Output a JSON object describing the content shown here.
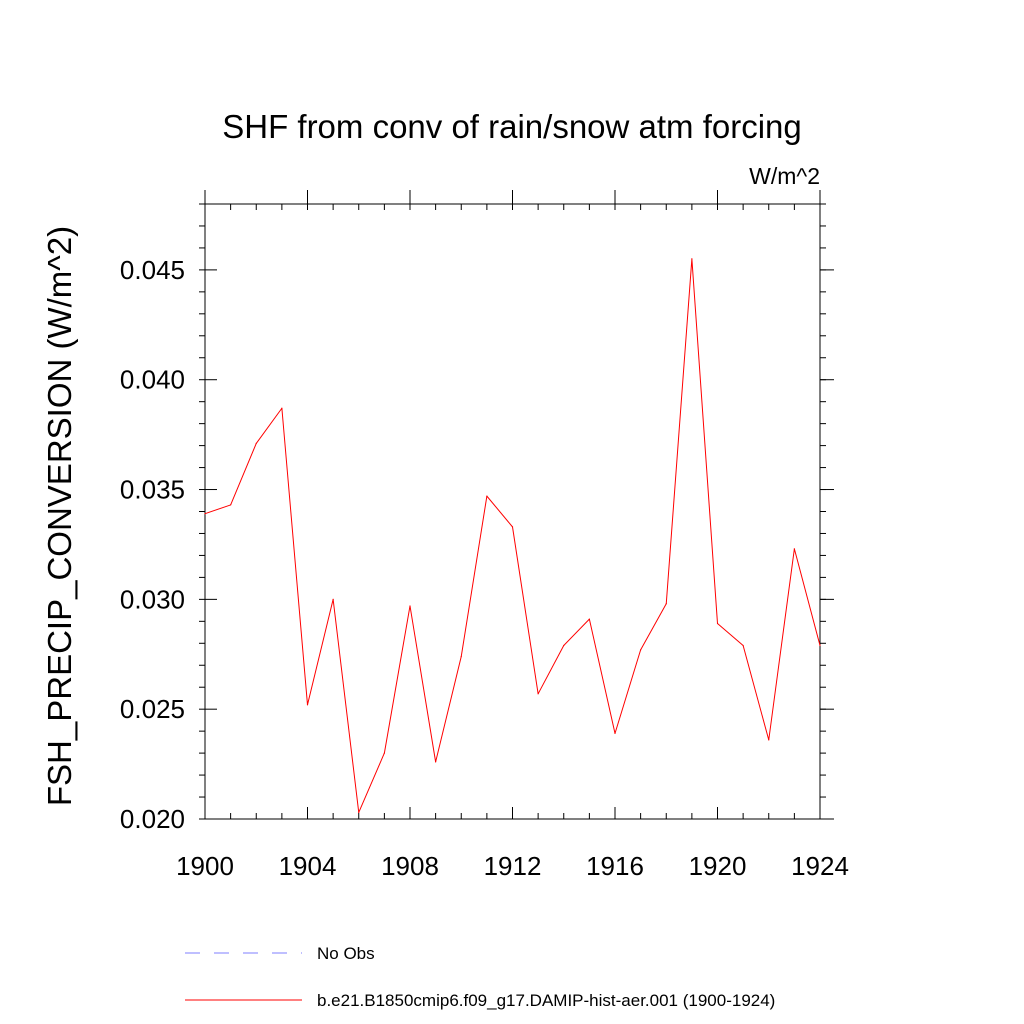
{
  "chart_data": {
    "type": "line",
    "title": "SHF from conv of rain/snow atm forcing",
    "units": "W/m^2",
    "ylabel": "FSH_PRECIP_CONVERSION  (W/m^2)",
    "xlabel": "",
    "xlim": [
      1900,
      1924
    ],
    "ylim": [
      0.02,
      0.048
    ],
    "xticks": [
      1900,
      1904,
      1908,
      1912,
      1916,
      1920,
      1924
    ],
    "xtick_labels": [
      "1900",
      "1904",
      "1908",
      "1912",
      "1916",
      "1920",
      "1924"
    ],
    "yticks": [
      0.02,
      0.025,
      0.03,
      0.035,
      0.04,
      0.045
    ],
    "ytick_labels": [
      "0.020",
      "0.025",
      "0.030",
      "0.035",
      "0.040",
      "0.045"
    ],
    "grid": false,
    "legend_position": "bottom",
    "series": [
      {
        "name": "b.e21.B1850cmip6.f09_g17.DAMIP-hist-aer.001 (1900-1924)",
        "color": "#ff0000",
        "style": "solid",
        "x": [
          1900,
          1901,
          1902,
          1903,
          1904,
          1905,
          1906,
          1907,
          1908,
          1909,
          1910,
          1911,
          1912,
          1913,
          1914,
          1915,
          1916,
          1917,
          1918,
          1919,
          1920,
          1921,
          1922,
          1923,
          1924
        ],
        "values": [
          0.0339,
          0.0343,
          0.0371,
          0.0387,
          0.0252,
          0.03,
          0.0203,
          0.023,
          0.0297,
          0.0226,
          0.0274,
          0.0347,
          0.0333,
          0.0257,
          0.0279,
          0.0291,
          0.0239,
          0.0277,
          0.0298,
          0.0455,
          0.0289,
          0.0279,
          0.0236,
          0.0323,
          0.0279
        ]
      }
    ],
    "legend": [
      {
        "label": "No Obs",
        "color": "#7f7fff",
        "style": "dashed"
      },
      {
        "label": "b.e21.B1850cmip6.f09_g17.DAMIP-hist-aer.001 (1900-1924)",
        "color": "#ff0000",
        "style": "solid"
      }
    ]
  }
}
